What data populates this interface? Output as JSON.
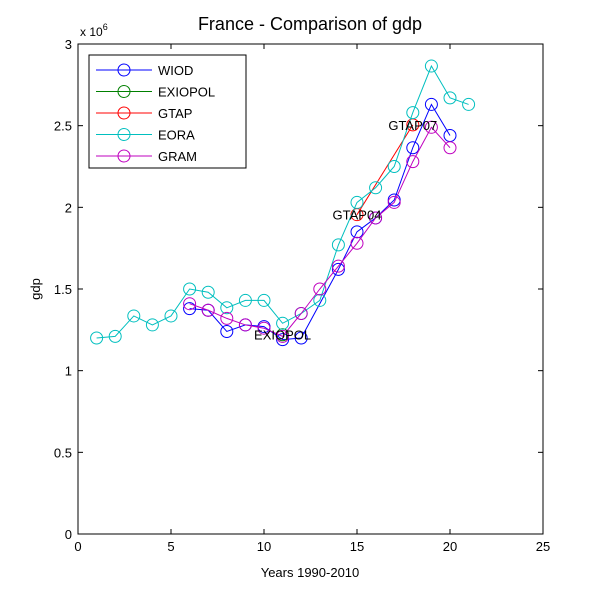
{
  "chart_data": {
    "type": "line",
    "title": "France - Comparison of gdp",
    "xlabel": "Years 1990-2010",
    "ylabel": "gdp",
    "multiplier": "x 10",
    "multiplier_exp": "6",
    "xlim": [
      0,
      25
    ],
    "ylim": [
      0,
      3
    ],
    "xticks": [
      0,
      5,
      10,
      15,
      20,
      25
    ],
    "yticks": [
      0,
      0.5,
      1,
      1.5,
      2,
      2.5,
      3
    ],
    "legend_position": "top-left",
    "series": [
      {
        "name": "WIOD",
        "color": "#0000ff",
        "x": [
          6,
          7,
          8,
          9,
          10,
          11,
          12,
          14,
          15,
          16,
          17,
          18,
          19,
          20
        ],
        "y": [
          1.38,
          1.37,
          1.24,
          1.28,
          1.27,
          1.19,
          1.2,
          1.62,
          1.85,
          1.935,
          2.045,
          2.365,
          2.63,
          2.44
        ]
      },
      {
        "name": "EXIOPOL",
        "color": "#008000",
        "x": [
          11
        ],
        "y": [
          1.22
        ]
      },
      {
        "name": "GTAP",
        "color": "#ff0000",
        "x": [
          15,
          18
        ],
        "y": [
          1.955,
          2.505
        ]
      },
      {
        "name": "EORA",
        "color": "#00bfbf",
        "x": [
          1,
          2,
          3,
          4,
          5,
          6,
          7,
          8,
          9,
          10,
          11,
          12,
          13,
          14,
          15,
          16,
          17,
          18,
          19,
          20,
          21
        ],
        "y": [
          1.2,
          1.21,
          1.335,
          1.28,
          1.335,
          1.5,
          1.48,
          1.385,
          1.43,
          1.43,
          1.29,
          1.35,
          1.43,
          1.77,
          2.03,
          2.12,
          2.25,
          2.58,
          2.865,
          2.67,
          2.63
        ]
      },
      {
        "name": "GRAM",
        "color": "#bf00bf",
        "x": [
          6,
          7,
          8,
          9,
          10,
          11,
          12,
          13,
          14,
          15,
          16,
          17,
          18,
          19,
          20
        ],
        "y": [
          1.41,
          1.37,
          1.32,
          1.28,
          1.26,
          1.21,
          1.35,
          1.5,
          1.64,
          1.78,
          1.935,
          2.03,
          2.28,
          2.49,
          2.365
        ]
      }
    ],
    "annotations": [
      {
        "text": "EXIOPOL",
        "x": 11,
        "y": 1.22
      },
      {
        "text": "GTAP04",
        "x": 15,
        "y": 1.955
      },
      {
        "text": "GTAP07",
        "x": 18,
        "y": 2.505
      }
    ]
  }
}
